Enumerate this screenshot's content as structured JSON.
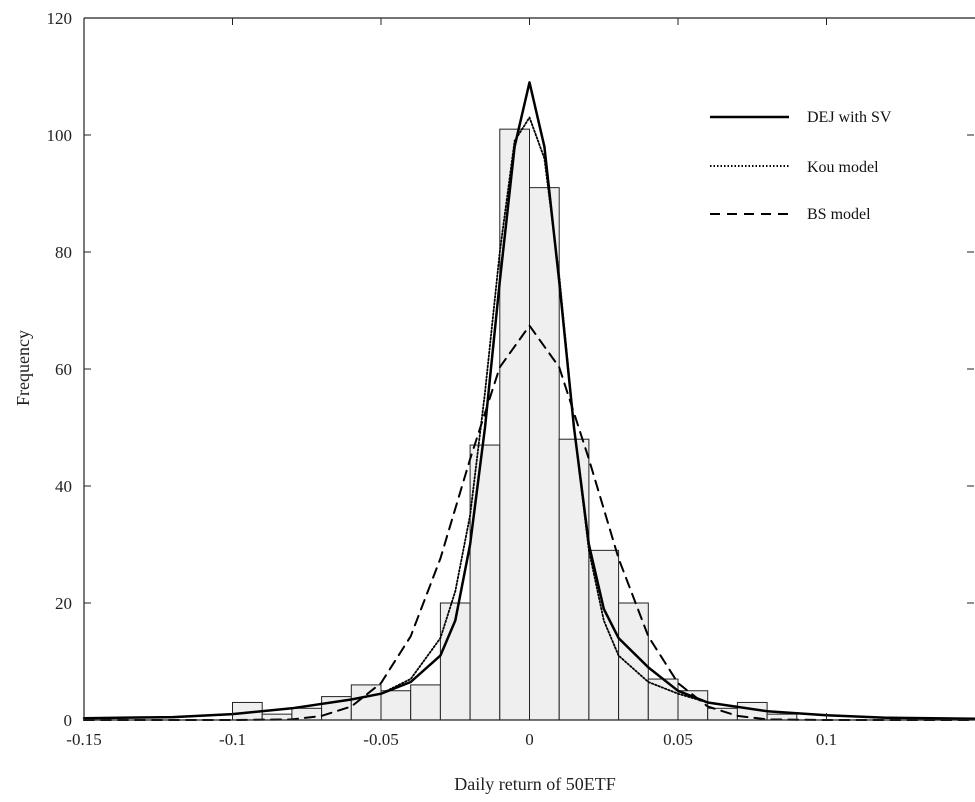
{
  "chart_data": {
    "type": "bar",
    "title": "",
    "xlabel": "Daily return of 50ETF",
    "ylabel": "Frequency",
    "xlim": [
      -0.15,
      0.15
    ],
    "ylim": [
      0,
      120
    ],
    "x_ticks": [
      "-0.15",
      "-0.1",
      "-0.05",
      "0",
      "0.05",
      "0.1"
    ],
    "x_tick_values": [
      -0.15,
      -0.1,
      -0.05,
      0,
      0.05,
      0.1
    ],
    "y_ticks": [
      "0",
      "20",
      "40",
      "60",
      "80",
      "100",
      "120"
    ],
    "y_tick_values": [
      0,
      20,
      40,
      60,
      80,
      100,
      120
    ],
    "grid": false,
    "legend_position": "top-right",
    "histogram": {
      "bin_width": 0.01,
      "bin_starts": [
        -0.15,
        -0.14,
        -0.13,
        -0.12,
        -0.11,
        -0.1,
        -0.09,
        -0.08,
        -0.07,
        -0.06,
        -0.05,
        -0.04,
        -0.03,
        -0.02,
        -0.01,
        0.0,
        0.01,
        0.02,
        0.03,
        0.04,
        0.05,
        0.06,
        0.07,
        0.08,
        0.09,
        0.1,
        0.11,
        0.12,
        0.13,
        0.14
      ],
      "counts": [
        0,
        0,
        0,
        0,
        0,
        3,
        1,
        2,
        4,
        6,
        5,
        6,
        20,
        47,
        101,
        91,
        48,
        29,
        20,
        7,
        5,
        2,
        3,
        1,
        0,
        0,
        0,
        0,
        0,
        0
      ],
      "fill": "#efefef",
      "stroke": "#222222"
    },
    "series": [
      {
        "name": "DEJ with SV",
        "style": "solid",
        "x": [
          -0.15,
          -0.12,
          -0.1,
          -0.08,
          -0.06,
          -0.05,
          -0.04,
          -0.03,
          -0.025,
          -0.02,
          -0.015,
          -0.01,
          -0.005,
          0,
          0.005,
          0.01,
          0.015,
          0.02,
          0.025,
          0.03,
          0.04,
          0.05,
          0.06,
          0.08,
          0.1,
          0.12,
          0.15
        ],
        "y": [
          0.3,
          0.5,
          1,
          2,
          3.5,
          4.5,
          6.5,
          11,
          17,
          30,
          50,
          75,
          98,
          109,
          98,
          75,
          50,
          30,
          19,
          14,
          9,
          5,
          3,
          1.5,
          0.8,
          0.4,
          0.2
        ]
      },
      {
        "name": "Kou model",
        "style": "dotted",
        "x": [
          -0.15,
          -0.12,
          -0.1,
          -0.08,
          -0.06,
          -0.05,
          -0.04,
          -0.03,
          -0.025,
          -0.02,
          -0.015,
          -0.01,
          -0.005,
          0,
          0.005,
          0.01,
          0.015,
          0.02,
          0.025,
          0.03,
          0.04,
          0.05,
          0.06,
          0.08,
          0.1,
          0.12,
          0.15
        ],
        "y": [
          0.3,
          0.5,
          1,
          2,
          3.5,
          4.5,
          7,
          14,
          22,
          35,
          56,
          80,
          99,
          103,
          96,
          76,
          50,
          29,
          17,
          11,
          6.5,
          4.5,
          3,
          1.5,
          0.8,
          0.4,
          0.2
        ]
      },
      {
        "name": "BS model",
        "style": "dashed",
        "x": [
          -0.15,
          -0.1,
          -0.08,
          -0.07,
          -0.06,
          -0.05,
          -0.04,
          -0.03,
          -0.02,
          -0.01,
          0,
          0.01,
          0.02,
          0.03,
          0.04,
          0.05,
          0.06,
          0.07,
          0.08,
          0.1,
          0.15
        ],
        "y": [
          0,
          0,
          0.1,
          0.7,
          2.3,
          6.3,
          14.3,
          27.6,
          44.6,
          60.3,
          67.4,
          60.3,
          44.6,
          27.6,
          14.3,
          6.3,
          2.3,
          0.7,
          0.1,
          0,
          0
        ]
      }
    ]
  }
}
